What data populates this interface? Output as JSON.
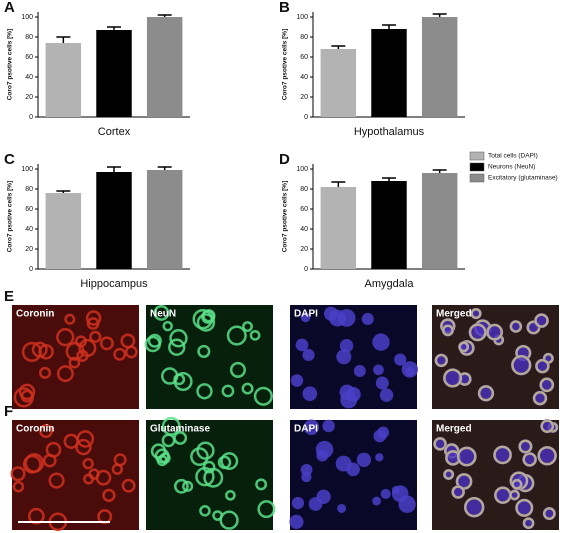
{
  "chart_data": [
    {
      "type": "bar",
      "panel": "A",
      "xlabel": "Cortex",
      "ylabel": "Coro7 psotive cells [%]",
      "categories": [
        null,
        null,
        null
      ],
      "values": [
        74,
        87,
        100
      ],
      "errors": [
        6,
        3,
        2
      ],
      "colors": [
        "#b3b3b3",
        "#000000",
        "#8c8c8c"
      ],
      "ylim": [
        0,
        105
      ],
      "yticks": [
        0,
        20,
        40,
        60,
        80,
        100
      ]
    },
    {
      "type": "bar",
      "panel": "B",
      "xlabel": "Hypothalamus",
      "ylabel": "Coro7 psotive cells [%]",
      "categories": [
        null,
        null,
        null
      ],
      "values": [
        68,
        88,
        100
      ],
      "errors": [
        3,
        4,
        3
      ],
      "colors": [
        "#b3b3b3",
        "#000000",
        "#8c8c8c"
      ],
      "ylim": [
        0,
        105
      ],
      "yticks": [
        0,
        20,
        40,
        60,
        80,
        100
      ]
    },
    {
      "type": "bar",
      "panel": "C",
      "xlabel": "Hippocampus",
      "ylabel": "Coro7 psotive cells [%]",
      "categories": [
        null,
        null,
        null
      ],
      "values": [
        76,
        97,
        99
      ],
      "errors": [
        2,
        5,
        3
      ],
      "colors": [
        "#b3b3b3",
        "#000000",
        "#8c8c8c"
      ],
      "ylim": [
        0,
        105
      ],
      "yticks": [
        0,
        20,
        40,
        60,
        80,
        100
      ]
    },
    {
      "type": "bar",
      "panel": "D",
      "xlabel": "Amygdala",
      "ylabel": "Coro7 psotive cells [%]",
      "categories": [
        null,
        null,
        null
      ],
      "values": [
        82,
        88,
        96
      ],
      "errors": [
        5,
        3,
        3
      ],
      "colors": [
        "#b3b3b3",
        "#000000",
        "#8c8c8c"
      ],
      "ylim": [
        0,
        105
      ],
      "yticks": [
        0,
        20,
        40,
        60,
        80,
        100
      ]
    }
  ],
  "legend": [
    {
      "name": "Total cells (DAPI)",
      "color": "#b3b3b3"
    },
    {
      "name": "Neurons (NeuN)",
      "color": "#000000"
    },
    {
      "name": "Excitatory (glutaminase)",
      "color": "#8c8c8c"
    }
  ],
  "panels": [
    {
      "label": "E",
      "images": [
        "Coronin",
        "NeuN",
        "DAPI",
        "Merged"
      ]
    },
    {
      "label": "F",
      "images": [
        "Coronin",
        "Glutaminase",
        "DAPI",
        "Merged"
      ]
    }
  ]
}
